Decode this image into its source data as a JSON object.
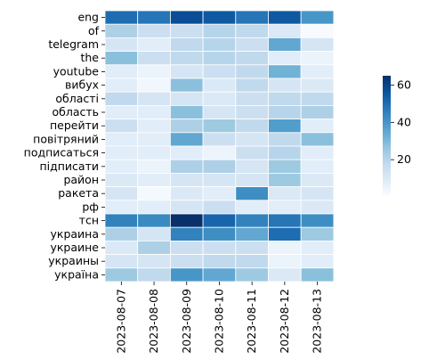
{
  "chart_data": {
    "type": "heatmap",
    "title": "",
    "xlabel": "",
    "ylabel": "",
    "x_categories": [
      "2023-08-07",
      "2023-08-08",
      "2023-08-09",
      "2023-08-10",
      "2023-08-11",
      "2023-08-12",
      "2023-08-13"
    ],
    "y_categories": [
      "eng",
      "of",
      "telegram",
      "the",
      "youtube",
      "вибух",
      "області",
      "область",
      "перейти",
      "повітряний",
      "подписаться",
      "підписати",
      "район",
      "ракета",
      "рф",
      "тсн",
      "украина",
      "украине",
      "украины",
      "україна"
    ],
    "values": [
      [
        50,
        48,
        58,
        55,
        48,
        55,
        40
      ],
      [
        22,
        15,
        15,
        20,
        18,
        10,
        1
      ],
      [
        12,
        8,
        18,
        20,
        15,
        35,
        12
      ],
      [
        28,
        15,
        18,
        20,
        18,
        8,
        5
      ],
      [
        8,
        5,
        12,
        15,
        18,
        32,
        8
      ],
      [
        8,
        3,
        28,
        10,
        18,
        12,
        10
      ],
      [
        18,
        12,
        12,
        10,
        15,
        18,
        18
      ],
      [
        8,
        8,
        28,
        12,
        15,
        20,
        22
      ],
      [
        15,
        8,
        22,
        25,
        18,
        38,
        8
      ],
      [
        8,
        8,
        35,
        15,
        12,
        18,
        28
      ],
      [
        8,
        8,
        8,
        5,
        15,
        20,
        8
      ],
      [
        8,
        5,
        22,
        22,
        12,
        25,
        8
      ],
      [
        10,
        8,
        12,
        12,
        12,
        25,
        10
      ],
      [
        12,
        2,
        10,
        8,
        42,
        10,
        12
      ],
      [
        8,
        8,
        12,
        15,
        8,
        8,
        10
      ],
      [
        45,
        43,
        65,
        52,
        45,
        48,
        42
      ],
      [
        22,
        12,
        45,
        42,
        35,
        50,
        25
      ],
      [
        10,
        22,
        15,
        15,
        15,
        5,
        8
      ],
      [
        12,
        12,
        15,
        18,
        18,
        5,
        8
      ],
      [
        25,
        18,
        40,
        35,
        25,
        10,
        28
      ]
    ],
    "colorbar": {
      "min": 1,
      "max": 65,
      "ticks": [
        20,
        40,
        60
      ],
      "colormap": "Blues"
    }
  }
}
